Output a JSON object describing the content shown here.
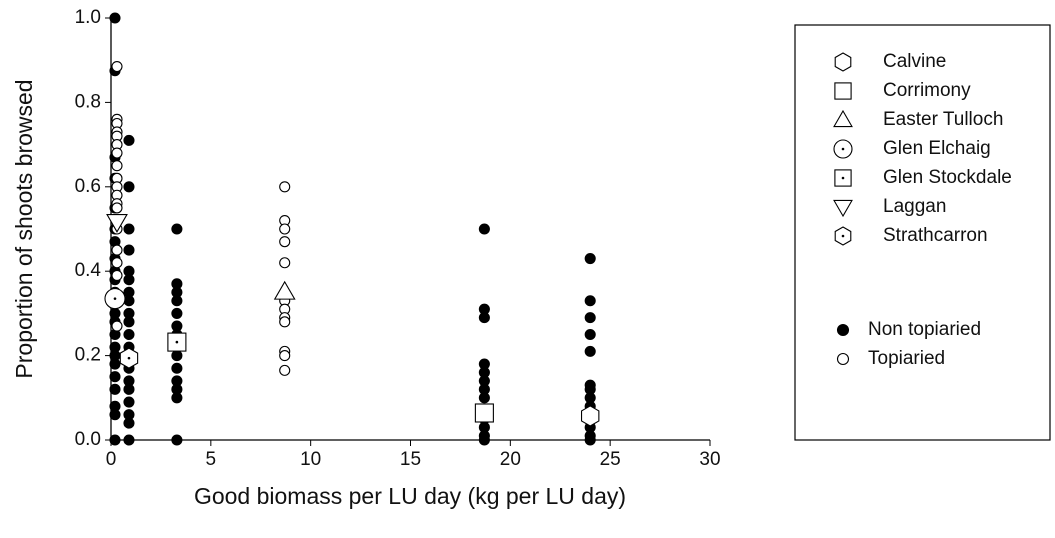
{
  "chart_data": {
    "type": "scatter",
    "x_label": "Good biomass per LU day (kg per LU day)",
    "y_label": "Proportion of shoots browsed",
    "xlim": [
      0,
      30
    ],
    "xticks": [
      0,
      5,
      10,
      15,
      20,
      25,
      30
    ],
    "ylim": [
      0,
      1
    ],
    "yticks": [
      {
        "value": 0,
        "label": "0.0"
      },
      0.2,
      0.4,
      0.6,
      0.8,
      {
        "value": 1,
        "label": "1.0"
      }
    ],
    "grid": false,
    "series": [
      {
        "name": "Calvine",
        "marker": "hexagon",
        "dot": false,
        "size": "large",
        "color": "#ffffff",
        "x": [
          24.0
        ],
        "values": [
          0.057
        ]
      },
      {
        "name": "Corrimony",
        "marker": "square",
        "dot": false,
        "size": "large",
        "color": "#ffffff",
        "x": [
          18.7
        ],
        "values": [
          0.064
        ]
      },
      {
        "name": "Easter Tulloch",
        "marker": "triangle",
        "dot": false,
        "size": "large",
        "color": "#ffffff",
        "x": [
          8.7
        ],
        "values": [
          0.351
        ]
      },
      {
        "name": "Glen Elchaig",
        "marker": "circle",
        "dot": true,
        "size": "large",
        "color": "#ffffff",
        "x": [
          0.2
        ],
        "values": [
          0.335
        ]
      },
      {
        "name": "Glen Stockdale",
        "marker": "square",
        "dot": true,
        "size": "large",
        "color": "#ffffff",
        "x": [
          3.3
        ],
        "values": [
          0.232
        ]
      },
      {
        "name": "Laggan",
        "marker": "triangle-down",
        "dot": false,
        "size": "large",
        "color": "#ffffff",
        "x": [
          0.3
        ],
        "values": [
          0.517
        ]
      },
      {
        "name": "Strathcarron",
        "marker": "hexagon",
        "dot": true,
        "size": "large",
        "color": "#ffffff",
        "x": [
          0.9
        ],
        "values": [
          0.194
        ]
      },
      {
        "name": "Non topiaried",
        "marker": "circle",
        "dot": false,
        "size": "small",
        "color": "#000000",
        "x": [
          0.2,
          0.2,
          0.2,
          0.2,
          0.2,
          0.2,
          0.2,
          0.2,
          0.2,
          0.2,
          0.2,
          0.2,
          0.2,
          0.2,
          0.2,
          0.2,
          0.2,
          0.2,
          0.2,
          0.2,
          0.2,
          0.2,
          0.2,
          0.9,
          0.9,
          0.9,
          0.9,
          0.9,
          0.9,
          0.9,
          0.9,
          0.9,
          0.9,
          0.9,
          0.9,
          0.9,
          0.9,
          0.9,
          0.9,
          0.9,
          0.9,
          0.9,
          0.9,
          3.3,
          3.3,
          3.3,
          3.3,
          3.3,
          3.3,
          3.3,
          3.3,
          3.3,
          3.3,
          3.3,
          3.3,
          3.3,
          18.7,
          18.7,
          18.7,
          18.7,
          18.7,
          18.7,
          18.7,
          18.7,
          18.7,
          18.7,
          18.7,
          18.7,
          18.7,
          24.0,
          24.0,
          24.0,
          24.0,
          24.0,
          24.0,
          24.0,
          24.0,
          24.0,
          24.0,
          24.0,
          24.0,
          24.0
        ],
        "values": [
          1.0,
          0.875,
          0.67,
          0.62,
          0.55,
          0.5,
          0.47,
          0.43,
          0.4,
          0.38,
          0.35,
          0.33,
          0.3,
          0.28,
          0.25,
          0.22,
          0.2,
          0.18,
          0.15,
          0.12,
          0.08,
          0.06,
          0,
          0.71,
          0.6,
          0.5,
          0.45,
          0.4,
          0.38,
          0.35,
          0.33,
          0.3,
          0.28,
          0.25,
          0.22,
          0.2,
          0.17,
          0.14,
          0.12,
          0.09,
          0.06,
          0.04,
          0,
          0.5,
          0.37,
          0.35,
          0.33,
          0.3,
          0.27,
          0.25,
          0.2,
          0.17,
          0.14,
          0.12,
          0.1,
          0,
          0.5,
          0.31,
          0.29,
          0.18,
          0.16,
          0.14,
          0.12,
          0.1,
          0.07,
          0.05,
          0.03,
          0.01,
          0,
          0.43,
          0.33,
          0.29,
          0.25,
          0.21,
          0.13,
          0.12,
          0.1,
          0.08,
          0.05,
          0.03,
          0.01,
          0
        ]
      },
      {
        "name": "Topiaried",
        "marker": "circle",
        "dot": false,
        "size": "small",
        "color": "#ffffff",
        "x": [
          0.3,
          0.3,
          0.3,
          0.3,
          0.3,
          0.3,
          0.3,
          0.3,
          0.3,
          0.3,
          0.3,
          0.3,
          0.3,
          0.3,
          0.3,
          0.3,
          0.3,
          0.3,
          0.3,
          8.7,
          8.7,
          8.7,
          8.7,
          8.7,
          8.7,
          8.7,
          8.7,
          8.7,
          8.7,
          8.7,
          8.7
        ],
        "values": [
          0.885,
          0.76,
          0.75,
          0.73,
          0.72,
          0.7,
          0.68,
          0.65,
          0.62,
          0.6,
          0.58,
          0.56,
          0.55,
          0.5,
          0.45,
          0.42,
          0.39,
          0.33,
          0.27,
          0.6,
          0.52,
          0.5,
          0.47,
          0.42,
          0.33,
          0.31,
          0.29,
          0.28,
          0.21,
          0.2,
          0.165
        ]
      }
    ]
  }
}
